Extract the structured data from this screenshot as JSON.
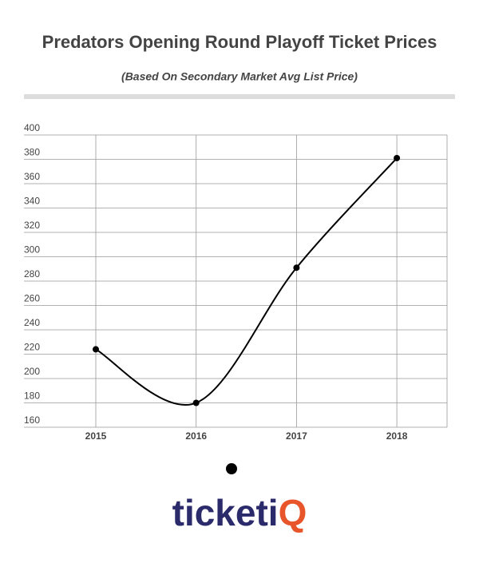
{
  "chart_data": {
    "type": "line",
    "title": "Predators Opening Round Playoff Ticket Prices",
    "subtitle": "(Based On Secondary Market Avg List Price)",
    "categories": [
      "2015",
      "2016",
      "2017",
      "2018"
    ],
    "values": [
      224,
      180,
      291,
      381
    ],
    "color": "#000000",
    "ylim": [
      160,
      400
    ],
    "yticks": [
      160,
      180,
      200,
      220,
      240,
      260,
      280,
      300,
      320,
      340,
      360,
      380,
      400
    ],
    "grid": true
  },
  "logo": {
    "main": "ticketi",
    "accent": "Q"
  }
}
